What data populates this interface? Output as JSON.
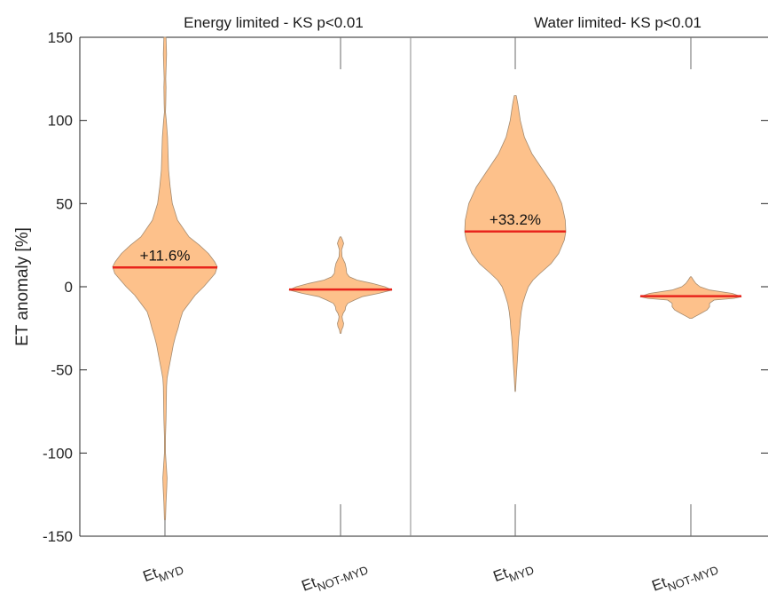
{
  "chart_data": {
    "type": "violin",
    "ylabel": "ET anomaly [%]",
    "ylim": [
      -150,
      150
    ],
    "yticks": [
      150,
      100,
      50,
      0,
      -50,
      -100,
      -150
    ],
    "panels": [
      {
        "title": "Energy limited - KS p<0.01",
        "categories": [
          {
            "main": "Et",
            "sub": "MYD"
          },
          {
            "main": "Et",
            "sub": "NOT-MYD"
          }
        ]
      },
      {
        "title": "Water limited- KS p<0.01",
        "categories": [
          {
            "main": "Et",
            "sub": "MYD"
          },
          {
            "main": "Et",
            "sub": "NOT-MYD"
          }
        ]
      }
    ],
    "series": [
      {
        "panel": 0,
        "category": 0,
        "median": 11.6,
        "annotation": "+11.6%",
        "profile": [
          [
            150,
            0.02
          ],
          [
            140,
            0.03
          ],
          [
            130,
            0.02
          ],
          [
            125,
            0.015
          ],
          [
            120,
            0.02
          ],
          [
            110,
            0.015
          ],
          [
            105,
            0.01
          ],
          [
            100,
            0.025
          ],
          [
            90,
            0.05
          ],
          [
            80,
            0.06
          ],
          [
            70,
            0.07
          ],
          [
            60,
            0.1
          ],
          [
            50,
            0.14
          ],
          [
            40,
            0.24
          ],
          [
            30,
            0.46
          ],
          [
            25,
            0.66
          ],
          [
            20,
            0.83
          ],
          [
            15,
            0.95
          ],
          [
            12,
            1.0
          ],
          [
            8,
            0.96
          ],
          [
            4,
            0.85
          ],
          [
            0,
            0.74
          ],
          [
            -5,
            0.58
          ],
          [
            -10,
            0.46
          ],
          [
            -15,
            0.34
          ],
          [
            -20,
            0.29
          ],
          [
            -25,
            0.25
          ],
          [
            -30,
            0.2
          ],
          [
            -35,
            0.16
          ],
          [
            -40,
            0.13
          ],
          [
            -45,
            0.1
          ],
          [
            -50,
            0.07
          ],
          [
            -55,
            0.04
          ],
          [
            -60,
            0.03
          ],
          [
            -70,
            0.025
          ],
          [
            -80,
            0.02
          ],
          [
            -90,
            0.01
          ],
          [
            -100,
            0.01
          ],
          [
            -110,
            0.03
          ],
          [
            -115,
            0.04
          ],
          [
            -120,
            0.035
          ],
          [
            -130,
            0.02
          ],
          [
            -140,
            0.01
          ]
        ]
      },
      {
        "panel": 0,
        "category": 1,
        "median": -1.7,
        "annotation": "",
        "profile": [
          [
            30,
            0.01
          ],
          [
            28,
            0.04
          ],
          [
            26,
            0.06
          ],
          [
            24,
            0.04
          ],
          [
            22,
            0.02
          ],
          [
            18,
            0.03
          ],
          [
            14,
            0.09
          ],
          [
            11,
            0.11
          ],
          [
            8,
            0.12
          ],
          [
            6,
            0.17
          ],
          [
            4,
            0.32
          ],
          [
            2,
            0.62
          ],
          [
            0,
            0.86
          ],
          [
            -2,
            1.0
          ],
          [
            -4,
            0.74
          ],
          [
            -6,
            0.42
          ],
          [
            -8,
            0.27
          ],
          [
            -10,
            0.14
          ],
          [
            -12,
            0.1
          ],
          [
            -14,
            0.09
          ],
          [
            -16,
            0.05
          ],
          [
            -18,
            0.03
          ],
          [
            -20,
            0.04
          ],
          [
            -22,
            0.06
          ],
          [
            -24,
            0.05
          ],
          [
            -26,
            0.02
          ],
          [
            -28,
            0.01
          ]
        ]
      },
      {
        "panel": 1,
        "category": 0,
        "median": 33.2,
        "annotation": "+33.2%",
        "profile": [
          [
            115,
            0.02
          ],
          [
            110,
            0.05
          ],
          [
            100,
            0.1
          ],
          [
            90,
            0.18
          ],
          [
            80,
            0.33
          ],
          [
            70,
            0.55
          ],
          [
            60,
            0.77
          ],
          [
            50,
            0.92
          ],
          [
            40,
            0.99
          ],
          [
            33,
            1.0
          ],
          [
            28,
            0.97
          ],
          [
            20,
            0.86
          ],
          [
            14,
            0.71
          ],
          [
            8,
            0.49
          ],
          [
            4,
            0.35
          ],
          [
            0,
            0.26
          ],
          [
            -5,
            0.2
          ],
          [
            -10,
            0.15
          ],
          [
            -15,
            0.12
          ],
          [
            -20,
            0.1
          ],
          [
            -25,
            0.09
          ],
          [
            -30,
            0.07
          ],
          [
            -35,
            0.06
          ],
          [
            -40,
            0.05
          ],
          [
            -45,
            0.04
          ],
          [
            -50,
            0.03
          ],
          [
            -55,
            0.02
          ],
          [
            -60,
            0.01
          ],
          [
            -63,
            0.005
          ]
        ]
      },
      {
        "panel": 1,
        "category": 1,
        "median": -5.7,
        "annotation": "",
        "profile": [
          [
            6,
            0.01
          ],
          [
            4,
            0.05
          ],
          [
            2,
            0.1
          ],
          [
            0,
            0.18
          ],
          [
            -2,
            0.37
          ],
          [
            -4,
            0.82
          ],
          [
            -6,
            1.0
          ],
          [
            -7,
            0.85
          ],
          [
            -8,
            0.46
          ],
          [
            -10,
            0.37
          ],
          [
            -12,
            0.37
          ],
          [
            -14,
            0.32
          ],
          [
            -16,
            0.2
          ],
          [
            -18,
            0.08
          ],
          [
            -19,
            0.02
          ]
        ]
      }
    ],
    "colors": {
      "violin_fill": "#fdc18b",
      "violin_edge": "#a48b70",
      "median_line": "#e8251c",
      "axis": "#262626",
      "grid": "#262626"
    }
  }
}
